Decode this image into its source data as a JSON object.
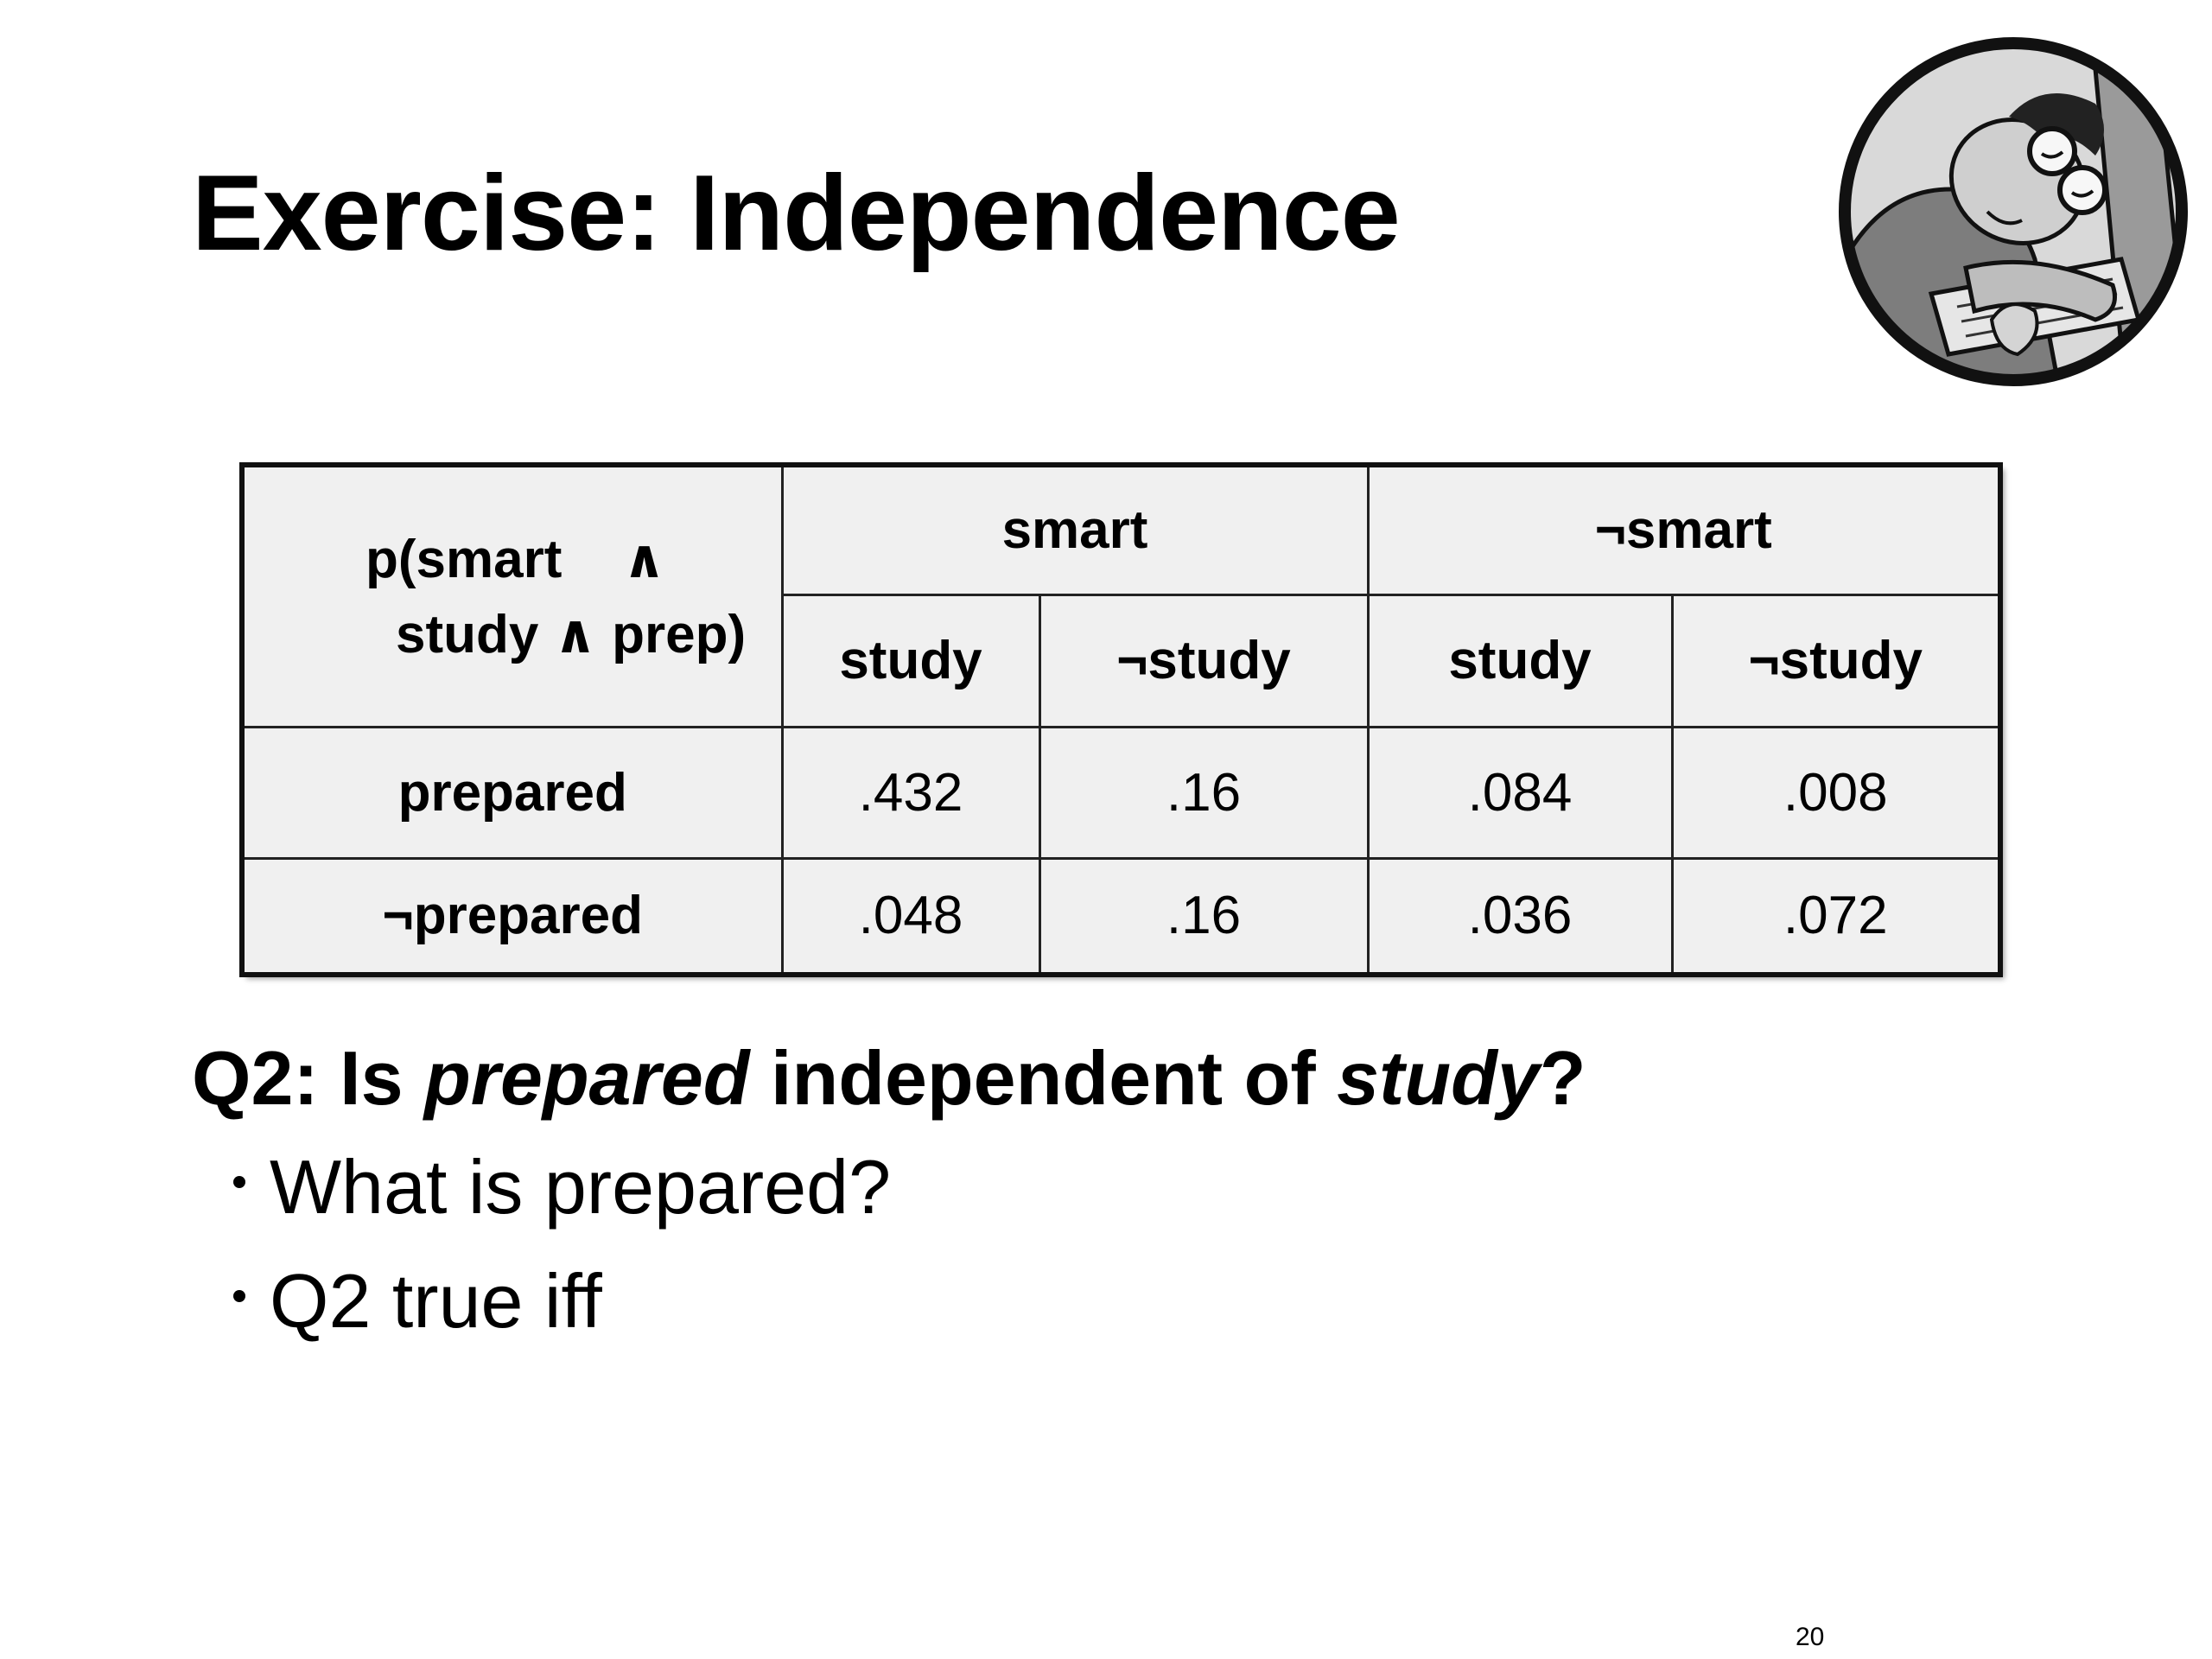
{
  "slide": {
    "title": "Exercise: Independence",
    "page_number": "20"
  },
  "mascot": {
    "icon": "sleeping-student-icon"
  },
  "table": {
    "corner_line1_a": "p(smart",
    "corner_line1_b": "∧",
    "corner_line2": "study ∧ prep)",
    "group_headers": [
      "smart",
      "¬smart"
    ],
    "sub_headers": [
      "study",
      "¬study",
      "study",
      "¬study"
    ],
    "rows": [
      {
        "label": "prepared",
        "values": [
          ".432",
          ".16",
          ".084",
          ".008"
        ]
      },
      {
        "label": "¬prepared",
        "values": [
          ".048",
          ".16",
          ".036",
          ".072"
        ]
      }
    ]
  },
  "question": {
    "prefix": "Q2: Is ",
    "term1": "prepared",
    "middle": " independent of ",
    "term2": "study",
    "suffix": "?"
  },
  "bullets": [
    "What is prepared?",
    "Q2 true iff"
  ]
}
